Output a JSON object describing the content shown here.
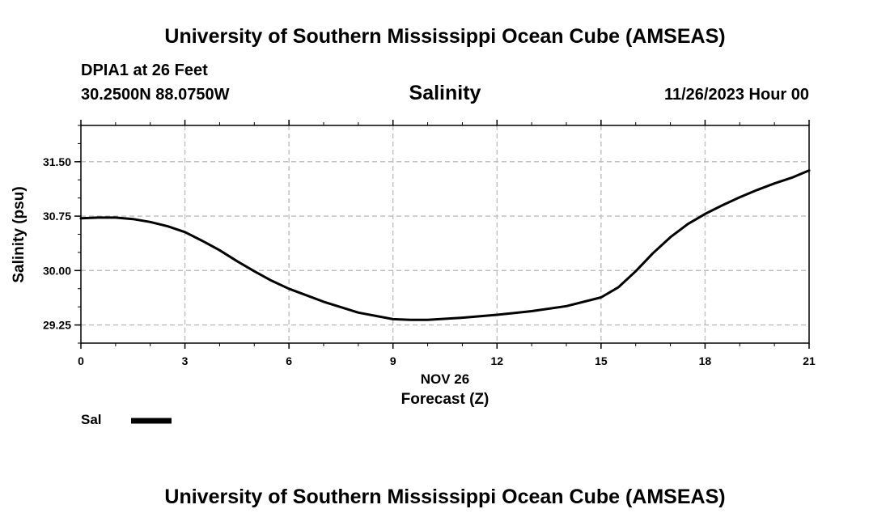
{
  "header": {
    "title": "University of Southern Mississippi Ocean Cube (AMSEAS)",
    "station": "DPIA1 at 26 Feet",
    "location": "30.2500N  88.0750W",
    "datetime": "11/26/2023 Hour 00",
    "footer_title": "University of Southern Mississippi Ocean Cube (AMSEAS)"
  },
  "legend": {
    "label": "Sal",
    "color": "#000000"
  },
  "chart_data": {
    "type": "line",
    "title": "Salinity",
    "ylabel": "Salinity (psu)",
    "xlabel": "Forecast (Z)",
    "date_label": "NOV 26",
    "xlim": [
      0,
      21
    ],
    "ylim": [
      29.0,
      32.0
    ],
    "x_ticks": [
      0,
      3,
      6,
      9,
      12,
      15,
      18,
      21
    ],
    "x_tick_labels": [
      "0",
      "3",
      "6",
      "9",
      "12",
      "15",
      "18",
      "21"
    ],
    "y_ticks": [
      29.25,
      30.0,
      30.75,
      31.5
    ],
    "y_tick_labels": [
      "29.25",
      "30.00",
      "30.75",
      "31.50"
    ],
    "grid": true,
    "series": [
      {
        "name": "Sal",
        "x": [
          0,
          0.5,
          1,
          1.5,
          2,
          2.5,
          3,
          3.5,
          4,
          4.5,
          5,
          5.5,
          6,
          7,
          8,
          9,
          9.5,
          10,
          11,
          12,
          13,
          14,
          15,
          15.5,
          16,
          16.5,
          17,
          17.5,
          18,
          18.5,
          19,
          19.5,
          20,
          20.5,
          21
        ],
        "values": [
          30.72,
          30.73,
          30.73,
          30.71,
          30.67,
          30.61,
          30.53,
          30.41,
          30.28,
          30.13,
          29.99,
          29.86,
          29.75,
          29.57,
          29.42,
          29.33,
          29.32,
          29.32,
          29.35,
          29.39,
          29.44,
          29.51,
          29.63,
          29.77,
          29.99,
          30.24,
          30.46,
          30.64,
          30.78,
          30.9,
          31.01,
          31.11,
          31.2,
          31.28,
          31.38
        ]
      }
    ]
  }
}
